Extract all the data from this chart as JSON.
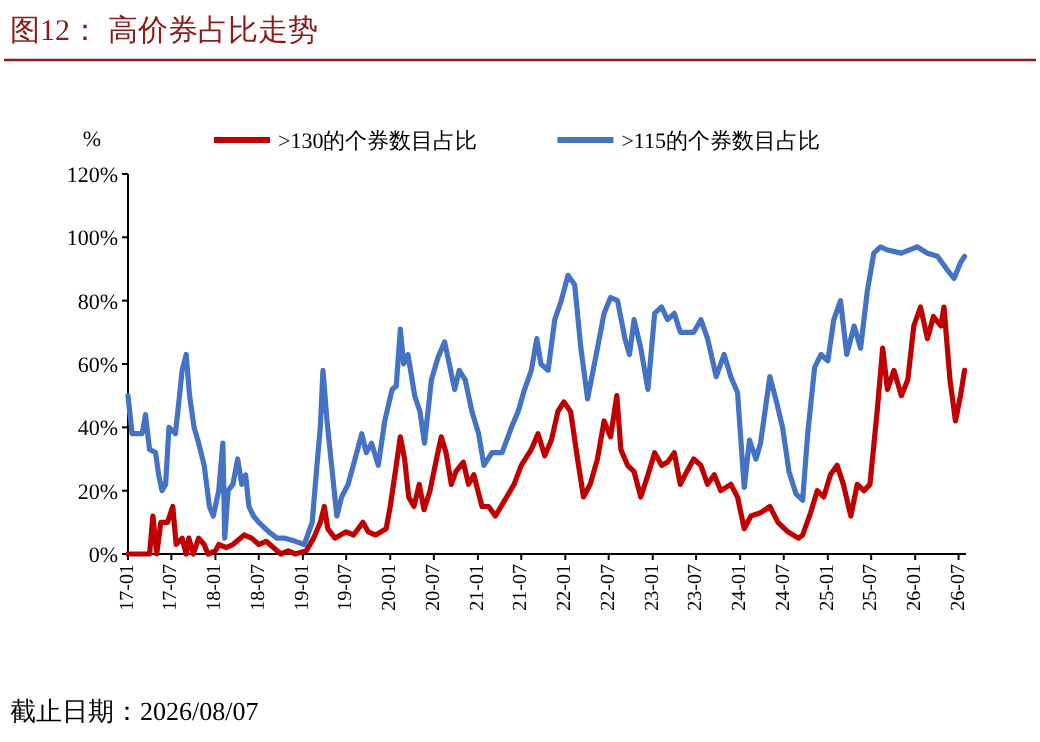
{
  "chart_data": {
    "type": "line",
    "title": "图12：  高价券占比走势",
    "ylabel": "%",
    "annotations": [
      "截止日期：2026/08/07"
    ],
    "legend": "top",
    "xlim": [
      "2017-01-01",
      "2026-08-01"
    ],
    "ylim": [
      0,
      120
    ],
    "yticks": [
      {
        "value": 0,
        "label": "0%"
      },
      {
        "value": 20,
        "label": "20%"
      },
      {
        "value": 40,
        "label": "40%"
      },
      {
        "value": 60,
        "label": "60%"
      },
      {
        "value": 80,
        "label": "80%"
      },
      {
        "value": 100,
        "label": "100%"
      },
      {
        "value": 120,
        "label": "120%"
      }
    ],
    "xticks": [
      {
        "value": "2017-01",
        "label": "17-01"
      },
      {
        "value": "2017-07",
        "label": "17-07"
      },
      {
        "value": "2018-01",
        "label": "18-01"
      },
      {
        "value": "2018-07",
        "label": "18-07"
      },
      {
        "value": "2019-01",
        "label": "19-01"
      },
      {
        "value": "2019-07",
        "label": "19-07"
      },
      {
        "value": "2020-01",
        "label": "20-01"
      },
      {
        "value": "2020-07",
        "label": "20-07"
      },
      {
        "value": "2021-01",
        "label": "21-01"
      },
      {
        "value": "2021-07",
        "label": "21-07"
      },
      {
        "value": "2022-01",
        "label": "22-01"
      },
      {
        "value": "2022-07",
        "label": "22-07"
      },
      {
        "value": "2023-01",
        "label": "23-01"
      },
      {
        "value": "2023-07",
        "label": "23-07"
      },
      {
        "value": "2024-01",
        "label": "24-01"
      },
      {
        "value": "2024-07",
        "label": "24-07"
      },
      {
        "value": "2025-01",
        "label": "25-01"
      },
      {
        "value": "2025-07",
        "label": "25-07"
      },
      {
        "value": "2026-01",
        "label": "26-01"
      },
      {
        "value": "2026-07",
        "label": "26-07"
      }
    ],
    "series": [
      {
        "name": ">130的个券数目占比",
        "color": "#c00000",
        "x": [
          "2017-01-01",
          "2017-04-01",
          "2017-04-15",
          "2017-05-01",
          "2017-05-18",
          "2017-06-15",
          "2017-07-07",
          "2017-07-21",
          "2017-08-15",
          "2017-09-01",
          "2017-09-12",
          "2017-10-01",
          "2017-10-23",
          "2017-11-15",
          "2017-12-01",
          "2018-01-01",
          "2018-01-15",
          "2018-02-15",
          "2018-03-15",
          "2018-05-01",
          "2018-06-01",
          "2018-07-01",
          "2018-08-01",
          "2018-09-01",
          "2018-10-01",
          "2018-11-01",
          "2018-12-01",
          "2019-01-15",
          "2019-02-15",
          "2019-03-15",
          "2019-04-01",
          "2019-04-15",
          "2019-05-15",
          "2019-07-01",
          "2019-08-01",
          "2019-09-09",
          "2019-10-01",
          "2019-11-01",
          "2019-12-15",
          "2020-01-01",
          "2020-01-26",
          "2020-02-12",
          "2020-03-01",
          "2020-03-18",
          "2020-04-09",
          "2020-05-01",
          "2020-05-21",
          "2020-06-15",
          "2020-07-12",
          "2020-08-01",
          "2020-08-21",
          "2020-09-12",
          "2020-10-01",
          "2020-11-01",
          "2020-11-23",
          "2020-12-15",
          "2021-01-18",
          "2021-02-15",
          "2021-03-15",
          "2021-05-01",
          "2021-06-01",
          "2021-07-01",
          "2021-08-12",
          "2021-09-09",
          "2021-10-07",
          "2021-11-04",
          "2021-12-01",
          "2021-12-26",
          "2022-01-23",
          "2022-02-21",
          "2022-03-18",
          "2022-04-15",
          "2022-05-15",
          "2022-06-12",
          "2022-07-09",
          "2022-08-04",
          "2022-08-21",
          "2022-09-18",
          "2022-10-15",
          "2022-11-12",
          "2022-12-12",
          "2023-01-09",
          "2023-02-07",
          "2023-03-04",
          "2023-04-01",
          "2023-04-26",
          "2023-05-23",
          "2023-06-21",
          "2023-07-21",
          "2023-08-18",
          "2023-09-15",
          "2023-10-12",
          "2023-11-23",
          "2023-12-21",
          "2024-01-18",
          "2024-02-15",
          "2024-03-26",
          "2024-05-04",
          "2024-06-07",
          "2024-07-18",
          "2024-09-01",
          "2024-09-18",
          "2024-10-21",
          "2024-11-18",
          "2024-12-15",
          "2025-01-12",
          "2025-02-09",
          "2025-03-07",
          "2025-04-07",
          "2025-05-04",
          "2025-06-01",
          "2025-06-26",
          "2025-07-26",
          "2025-08-18",
          "2025-09-07",
          "2025-10-04",
          "2025-11-04",
          "2025-12-01",
          "2025-12-26",
          "2026-01-23",
          "2026-02-21",
          "2026-03-18",
          "2026-04-18",
          "2026-05-01",
          "2026-05-26",
          "2026-06-18",
          "2026-07-09",
          "2026-07-26"
        ],
        "values": [
          0,
          0,
          12,
          0,
          10,
          10,
          15,
          3,
          5,
          0,
          5,
          0,
          5,
          3,
          0,
          1,
          3,
          2,
          3,
          6,
          5,
          3,
          4,
          2,
          0,
          1,
          0,
          1,
          5,
          10,
          15,
          8,
          5,
          7,
          6,
          10,
          7,
          6,
          8,
          15,
          28,
          37,
          30,
          18,
          15,
          22,
          14,
          20,
          30,
          37,
          32,
          22,
          26,
          29,
          22,
          25,
          15,
          15,
          12,
          18,
          22,
          28,
          33,
          38,
          31,
          36,
          45,
          48,
          45,
          30,
          18,
          22,
          30,
          42,
          37,
          50,
          33,
          28,
          26,
          18,
          25,
          32,
          28,
          29,
          32,
          22,
          26,
          30,
          28,
          22,
          25,
          20,
          22,
          18,
          8,
          12,
          13,
          15,
          10,
          7,
          5,
          6,
          13,
          20,
          18,
          25,
          28,
          22,
          12,
          22,
          20,
          22,
          45,
          65,
          52,
          58,
          50,
          55,
          72,
          78,
          68,
          75,
          72,
          78,
          55,
          42,
          50,
          58
        ]
      },
      {
        "name": ">115的个券数目占比",
        "color": "#4472c4",
        "x": [
          "2017-01-01",
          "2017-01-18",
          "2017-03-01",
          "2017-03-15",
          "2017-04-01",
          "2017-04-26",
          "2017-05-09",
          "2017-05-23",
          "2017-06-07",
          "2017-06-21",
          "2017-07-18",
          "2017-08-04",
          "2017-08-15",
          "2017-09-01",
          "2017-09-15",
          "2017-10-04",
          "2017-10-23",
          "2017-11-15",
          "2017-12-07",
          "2017-12-23",
          "2018-01-15",
          "2018-02-01",
          "2018-02-09",
          "2018-02-23",
          "2018-03-15",
          "2018-04-04",
          "2018-04-21",
          "2018-05-07",
          "2018-05-21",
          "2018-06-09",
          "2018-07-01",
          "2018-08-12",
          "2018-09-15",
          "2018-10-18",
          "2018-12-01",
          "2019-01-07",
          "2019-02-09",
          "2019-03-01",
          "2019-03-15",
          "2019-03-26",
          "2019-04-12",
          "2019-05-01",
          "2019-05-23",
          "2019-06-12",
          "2019-07-09",
          "2019-08-07",
          "2019-09-04",
          "2019-09-23",
          "2019-10-15",
          "2019-11-12",
          "2019-12-09",
          "2020-01-09",
          "2020-01-26",
          "2020-02-12",
          "2020-02-26",
          "2020-03-15",
          "2020-04-12",
          "2020-05-04",
          "2020-05-23",
          "2020-06-21",
          "2020-07-18",
          "2020-08-15",
          "2020-09-09",
          "2020-09-26",
          "2020-10-15",
          "2020-11-09",
          "2020-12-07",
          "2021-01-04",
          "2021-01-26",
          "2021-03-01",
          "2021-04-12",
          "2021-05-21",
          "2021-06-18",
          "2021-07-15",
          "2021-08-12",
          "2021-09-04",
          "2021-09-21",
          "2021-10-21",
          "2021-11-18",
          "2021-12-15",
          "2022-01-12",
          "2022-02-09",
          "2022-03-07",
          "2022-04-04",
          "2022-05-15",
          "2022-06-12",
          "2022-07-09",
          "2022-08-07",
          "2022-09-07",
          "2022-09-26",
          "2022-10-15",
          "2022-11-12",
          "2022-12-12",
          "2023-01-09",
          "2023-02-07",
          "2023-03-04",
          "2023-04-01",
          "2023-04-26",
          "2023-05-23",
          "2023-06-21",
          "2023-07-21",
          "2023-08-18",
          "2023-09-23",
          "2023-10-26",
          "2023-11-23",
          "2023-12-21",
          "2024-01-18",
          "2024-02-09",
          "2024-03-07",
          "2024-03-26",
          "2024-05-04",
          "2024-06-01",
          "2024-06-26",
          "2024-07-23",
          "2024-08-21",
          "2024-09-18",
          "2024-10-09",
          "2024-11-07",
          "2024-12-04",
          "2025-01-01",
          "2025-01-26",
          "2025-02-23",
          "2025-03-21",
          "2025-04-21",
          "2025-05-18",
          "2025-06-15",
          "2025-07-12",
          "2025-08-09",
          "2025-09-07",
          "2025-11-04",
          "2026-01-09",
          "2026-02-21",
          "2026-04-04",
          "2026-05-12",
          "2026-06-12",
          "2026-07-09",
          "2026-07-26"
        ],
        "values": [
          50,
          38,
          38,
          44,
          33,
          32,
          25,
          20,
          22,
          40,
          38,
          50,
          58,
          63,
          50,
          40,
          35,
          28,
          15,
          12,
          20,
          35,
          5,
          20,
          22,
          30,
          22,
          25,
          15,
          12,
          10,
          7,
          5,
          5,
          4,
          3,
          10,
          28,
          40,
          58,
          42,
          28,
          12,
          18,
          22,
          30,
          38,
          32,
          35,
          28,
          42,
          52,
          53,
          71,
          60,
          63,
          50,
          45,
          35,
          55,
          62,
          67,
          58,
          52,
          58,
          55,
          45,
          38,
          28,
          32,
          32,
          40,
          45,
          52,
          58,
          68,
          60,
          58,
          74,
          80,
          88,
          85,
          65,
          49,
          65,
          76,
          81,
          80,
          68,
          63,
          74,
          65,
          52,
          76,
          78,
          74,
          76,
          70,
          70,
          70,
          74,
          68,
          56,
          63,
          56,
          51,
          21,
          36,
          30,
          35,
          56,
          48,
          40,
          26,
          19,
          17,
          38,
          59,
          63,
          61,
          74,
          80,
          63,
          72,
          65,
          83,
          95,
          97,
          96,
          95,
          97,
          95,
          94,
          90,
          87,
          92,
          94
        ]
      }
    ]
  }
}
